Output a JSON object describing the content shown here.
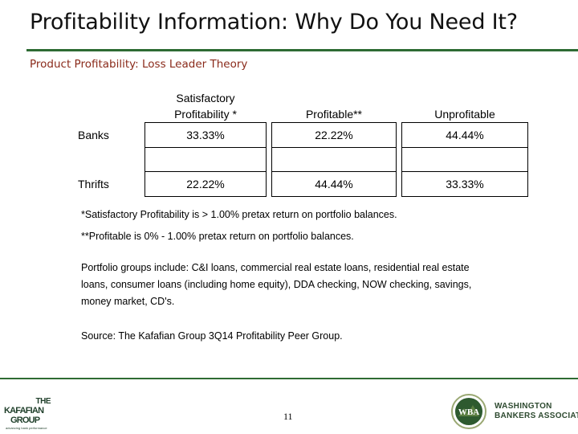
{
  "slide": {
    "title": "Profitability Information: Why Do You Need It?",
    "subtitle": "Product Profitability: Loss Leader Theory",
    "page_number": "11"
  },
  "table": {
    "headers": [
      "",
      "Satisfactory Profitability *",
      "Profitable**",
      "Unprofitable"
    ],
    "header_line1": "Satisfactory",
    "header_line2": "Profitability *",
    "rows": [
      {
        "label": "Banks",
        "values": [
          "33.33%",
          "22.22%",
          "44.44%"
        ]
      },
      {
        "label": "Thrifts",
        "values": [
          "22.22%",
          "44.44%",
          "33.33%"
        ]
      }
    ]
  },
  "notes": {
    "note1": "*Satisfactory Profitability is > 1.00% pretax return on portfolio balances.",
    "note2": "**Profitable is 0% - 1.00% pretax return on portfolio balances.",
    "note3": "Portfolio groups include: C&I loans, commercial real estate loans, residential real estate loans, consumer loans (including home equity), DDA checking, NOW checking, savings, money market, CD's.",
    "source": "Source: The Kafafian Group 3Q14 Profitability Peer Group."
  },
  "logos": {
    "kafafian": {
      "line1": "THE",
      "line2": "KAFAFIAN",
      "line3": "GROUP",
      "tagline": "advancing bank performance"
    },
    "wba": {
      "seal_text": "WBA",
      "name_line1": "WASHINGTON",
      "name_line2": "BANKERS ASSOCIATION"
    }
  },
  "colors": {
    "accent_green": "#2e6b33",
    "subtitle_red": "#8a2a1a"
  }
}
